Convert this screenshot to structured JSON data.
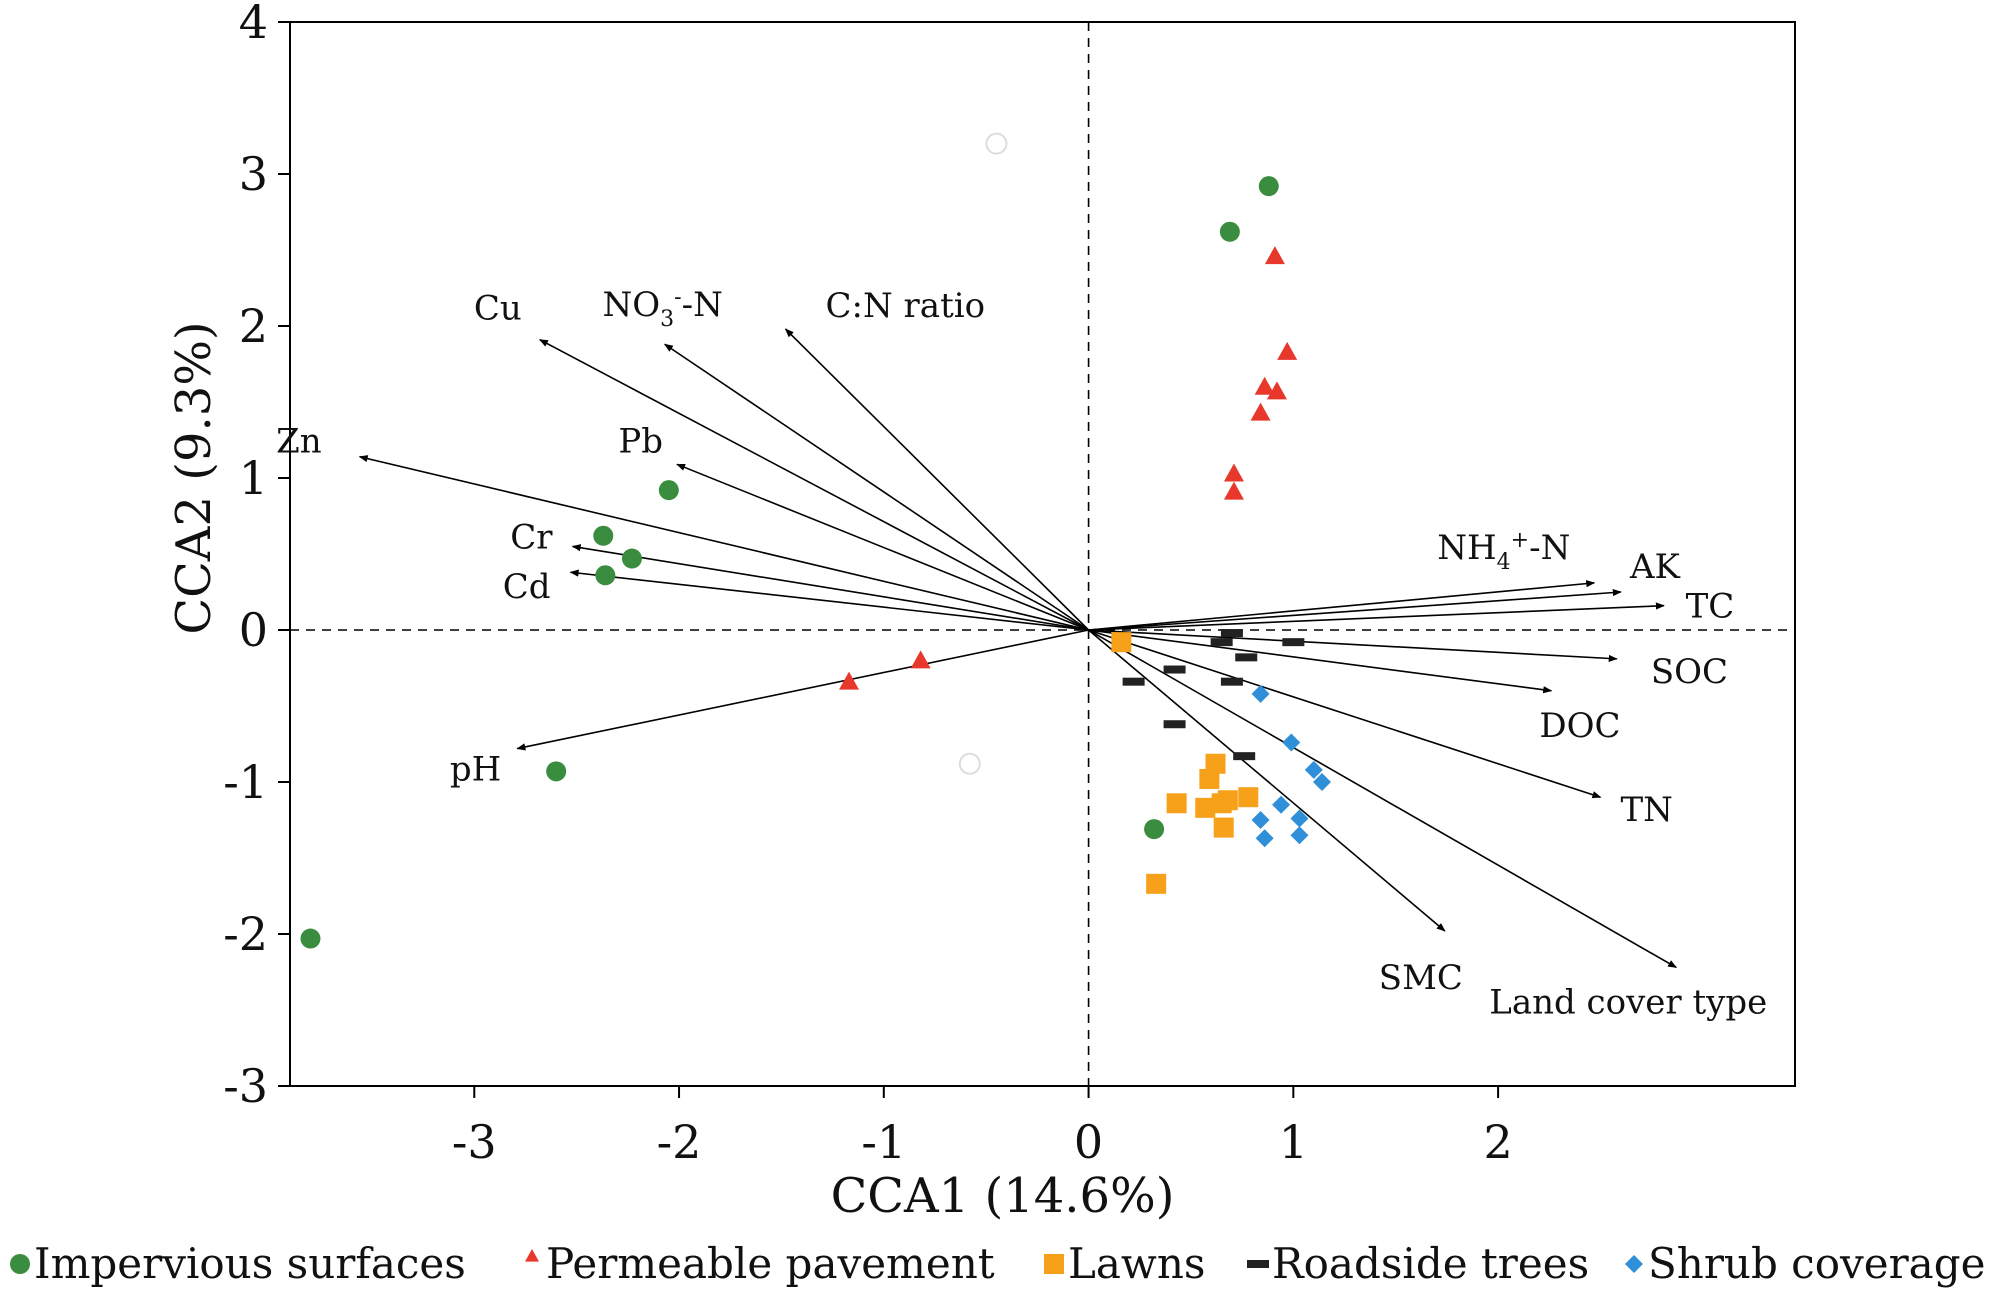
{
  "chart_data": {
    "type": "scatter",
    "title": "",
    "xlabel": "CCA1 (14.6%)",
    "ylabel": "CCA2 (9.3%)",
    "xlim": [
      -3.9,
      3.45
    ],
    "ylim": [
      -3,
      4
    ],
    "xticks": [
      -3,
      -2,
      -1,
      0,
      1,
      2
    ],
    "yticks": [
      -3,
      -2,
      -1,
      0,
      1,
      2,
      3,
      4
    ],
    "reference_lines": [
      "x=0",
      "y=0"
    ],
    "colors": {
      "Impervious surfaces": "#3a8c3f",
      "Permeable pavement": "#e8382b",
      "Lawns": "#f7a11a",
      "Roadside trees": "#222222",
      "Shrub coverage": "#2f8fd8"
    },
    "series": [
      {
        "name": "Impervious surfaces",
        "marker": "circle",
        "points": [
          [
            0.88,
            2.92
          ],
          [
            0.69,
            2.62
          ],
          [
            -2.05,
            0.92
          ],
          [
            -2.37,
            0.62
          ],
          [
            -2.23,
            0.47
          ],
          [
            -2.36,
            0.36
          ],
          [
            -2.6,
            -0.93
          ],
          [
            0.32,
            -1.31
          ],
          [
            -3.8,
            -2.03
          ]
        ]
      },
      {
        "name": "Permeable pavement",
        "marker": "triangle",
        "points": [
          [
            0.91,
            2.46
          ],
          [
            0.97,
            1.83
          ],
          [
            0.86,
            1.6
          ],
          [
            0.92,
            1.57
          ],
          [
            0.84,
            1.43
          ],
          [
            0.71,
            1.03
          ],
          [
            0.71,
            0.91
          ],
          [
            -0.82,
            -0.2
          ],
          [
            -1.17,
            -0.34
          ]
        ]
      },
      {
        "name": "Lawns",
        "marker": "square",
        "points": [
          [
            0.16,
            -0.08
          ],
          [
            0.62,
            -0.88
          ],
          [
            0.59,
            -0.98
          ],
          [
            0.43,
            -1.14
          ],
          [
            0.78,
            -1.1
          ],
          [
            0.68,
            -1.12
          ],
          [
            0.65,
            -1.14
          ],
          [
            0.57,
            -1.17
          ],
          [
            0.66,
            -1.3
          ],
          [
            0.33,
            -1.67
          ]
        ]
      },
      {
        "name": "Roadside trees",
        "marker": "dash",
        "points": [
          [
            0.7,
            -0.02
          ],
          [
            0.65,
            -0.08
          ],
          [
            1.0,
            -0.08
          ],
          [
            0.77,
            -0.18
          ],
          [
            0.42,
            -0.26
          ],
          [
            0.22,
            -0.34
          ],
          [
            0.7,
            -0.34
          ],
          [
            0.42,
            -0.62
          ],
          [
            0.76,
            -0.83
          ]
        ]
      },
      {
        "name": "Shrub coverage",
        "marker": "diamond",
        "points": [
          [
            0.84,
            -0.42
          ],
          [
            0.99,
            -0.74
          ],
          [
            1.1,
            -0.92
          ],
          [
            1.14,
            -1.0
          ],
          [
            0.94,
            -1.15
          ],
          [
            0.84,
            -1.25
          ],
          [
            1.03,
            -1.24
          ],
          [
            0.86,
            -1.37
          ],
          [
            1.03,
            -1.35
          ]
        ]
      }
    ],
    "faint_points": [
      [
        -0.45,
        3.2
      ],
      [
        -0.58,
        -0.88
      ]
    ],
    "vectors": [
      {
        "label": "Cu",
        "x": -2.68,
        "y": 1.91
      },
      {
        "label": "NO3--N",
        "x": -2.07,
        "y": 1.88
      },
      {
        "label": "C:N ratio",
        "x": -1.48,
        "y": 1.98
      },
      {
        "label": "Zn",
        "x": -3.56,
        "y": 1.14
      },
      {
        "label": "Pb",
        "x": -2.01,
        "y": 1.09
      },
      {
        "label": "Cr",
        "x": -2.52,
        "y": 0.55
      },
      {
        "label": "Cd",
        "x": -2.53,
        "y": 0.38
      },
      {
        "label": "pH",
        "x": -2.79,
        "y": -0.78
      },
      {
        "label": "NH4+-N",
        "x": 2.47,
        "y": 0.31
      },
      {
        "label": "AK",
        "x": 2.6,
        "y": 0.25
      },
      {
        "label": "TC",
        "x": 2.81,
        "y": 0.16
      },
      {
        "label": "SOC",
        "x": 2.58,
        "y": -0.19
      },
      {
        "label": "DOC",
        "x": 2.26,
        "y": -0.4
      },
      {
        "label": "TN",
        "x": 2.5,
        "y": -1.1
      },
      {
        "label": "SMC",
        "x": 1.74,
        "y": -1.98
      },
      {
        "label": "Land cover type",
        "x": 2.87,
        "y": -2.22
      }
    ],
    "legend": {
      "placement": "bottom",
      "entries": [
        "Impervious surfaces",
        "Permeable pavement",
        "Lawns",
        "Roadside trees",
        "Shrub coverage"
      ]
    }
  }
}
